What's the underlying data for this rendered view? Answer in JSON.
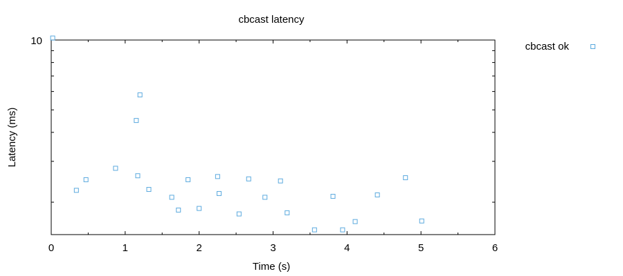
{
  "chart_data": {
    "type": "scatter",
    "title": "cbcast latency",
    "xlabel": "Time (s)",
    "ylabel": "Latency (ms)",
    "xlim": [
      0,
      6
    ],
    "ylim": [
      1.45,
      10
    ],
    "y_scale": "log",
    "x_ticks": [
      "0",
      "1",
      "2",
      "3",
      "4",
      "5",
      "6"
    ],
    "y_tick_labels": [
      {
        "value": 10,
        "label": "10"
      }
    ],
    "grid": false,
    "legend_position": "top-right",
    "series": [
      {
        "name": "cbcast ok",
        "color": "#5aa9de",
        "marker": "square-open",
        "points": [
          {
            "x": 0.02,
            "y": 10.2
          },
          {
            "x": 0.34,
            "y": 2.25
          },
          {
            "x": 0.47,
            "y": 2.5
          },
          {
            "x": 0.87,
            "y": 2.8
          },
          {
            "x": 1.15,
            "y": 4.5
          },
          {
            "x": 1.17,
            "y": 2.6
          },
          {
            "x": 1.2,
            "y": 5.8
          },
          {
            "x": 1.32,
            "y": 2.27
          },
          {
            "x": 1.63,
            "y": 2.1
          },
          {
            "x": 1.72,
            "y": 1.85
          },
          {
            "x": 1.85,
            "y": 2.5
          },
          {
            "x": 2.0,
            "y": 1.88
          },
          {
            "x": 2.25,
            "y": 2.58
          },
          {
            "x": 2.27,
            "y": 2.18
          },
          {
            "x": 2.54,
            "y": 1.78
          },
          {
            "x": 2.67,
            "y": 2.52
          },
          {
            "x": 2.89,
            "y": 2.1
          },
          {
            "x": 3.1,
            "y": 2.47
          },
          {
            "x": 3.19,
            "y": 1.8
          },
          {
            "x": 3.56,
            "y": 1.52
          },
          {
            "x": 3.81,
            "y": 2.12
          },
          {
            "x": 3.94,
            "y": 1.52
          },
          {
            "x": 4.11,
            "y": 1.65
          },
          {
            "x": 4.41,
            "y": 2.15
          },
          {
            "x": 4.79,
            "y": 2.55
          },
          {
            "x": 5.01,
            "y": 1.66
          }
        ]
      }
    ]
  }
}
